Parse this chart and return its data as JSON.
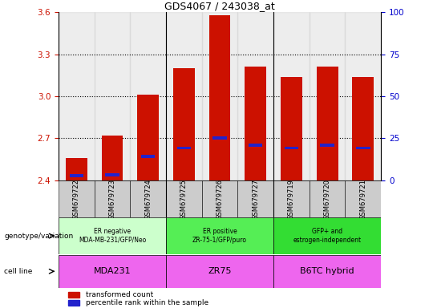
{
  "title": "GDS4067 / 243038_at",
  "samples": [
    "GSM679722",
    "GSM679723",
    "GSM679724",
    "GSM679725",
    "GSM679726",
    "GSM679727",
    "GSM679719",
    "GSM679720",
    "GSM679721"
  ],
  "red_values": [
    2.56,
    2.72,
    3.01,
    3.2,
    3.58,
    3.21,
    3.14,
    3.21,
    3.14
  ],
  "blue_values": [
    2.43,
    2.44,
    2.57,
    2.63,
    2.7,
    2.65,
    2.63,
    2.65,
    2.63
  ],
  "ylim_left": [
    2.4,
    3.6
  ],
  "ylim_right": [
    0,
    100
  ],
  "yticks_left": [
    2.4,
    2.7,
    3.0,
    3.3,
    3.6
  ],
  "yticks_right": [
    0,
    25,
    50,
    75,
    100
  ],
  "group_labels_geno": [
    "ER negative\nMDA-MB-231/GFP/Neo",
    "ER positive\nZR-75-1/GFP/puro",
    "GFP+ and\nestrogen-independent"
  ],
  "group_labels_cell": [
    "MDA231",
    "ZR75",
    "B6TC hybrid"
  ],
  "geno_color_1": "#ccffcc",
  "geno_color_2": "#66ee66",
  "cell_color": "#ee66ee",
  "bar_color": "#cc1100",
  "blue_color": "#2222cc",
  "tick_color_left": "#cc1100",
  "tick_color_right": "#0000cc",
  "col_bg": "#cccccc"
}
